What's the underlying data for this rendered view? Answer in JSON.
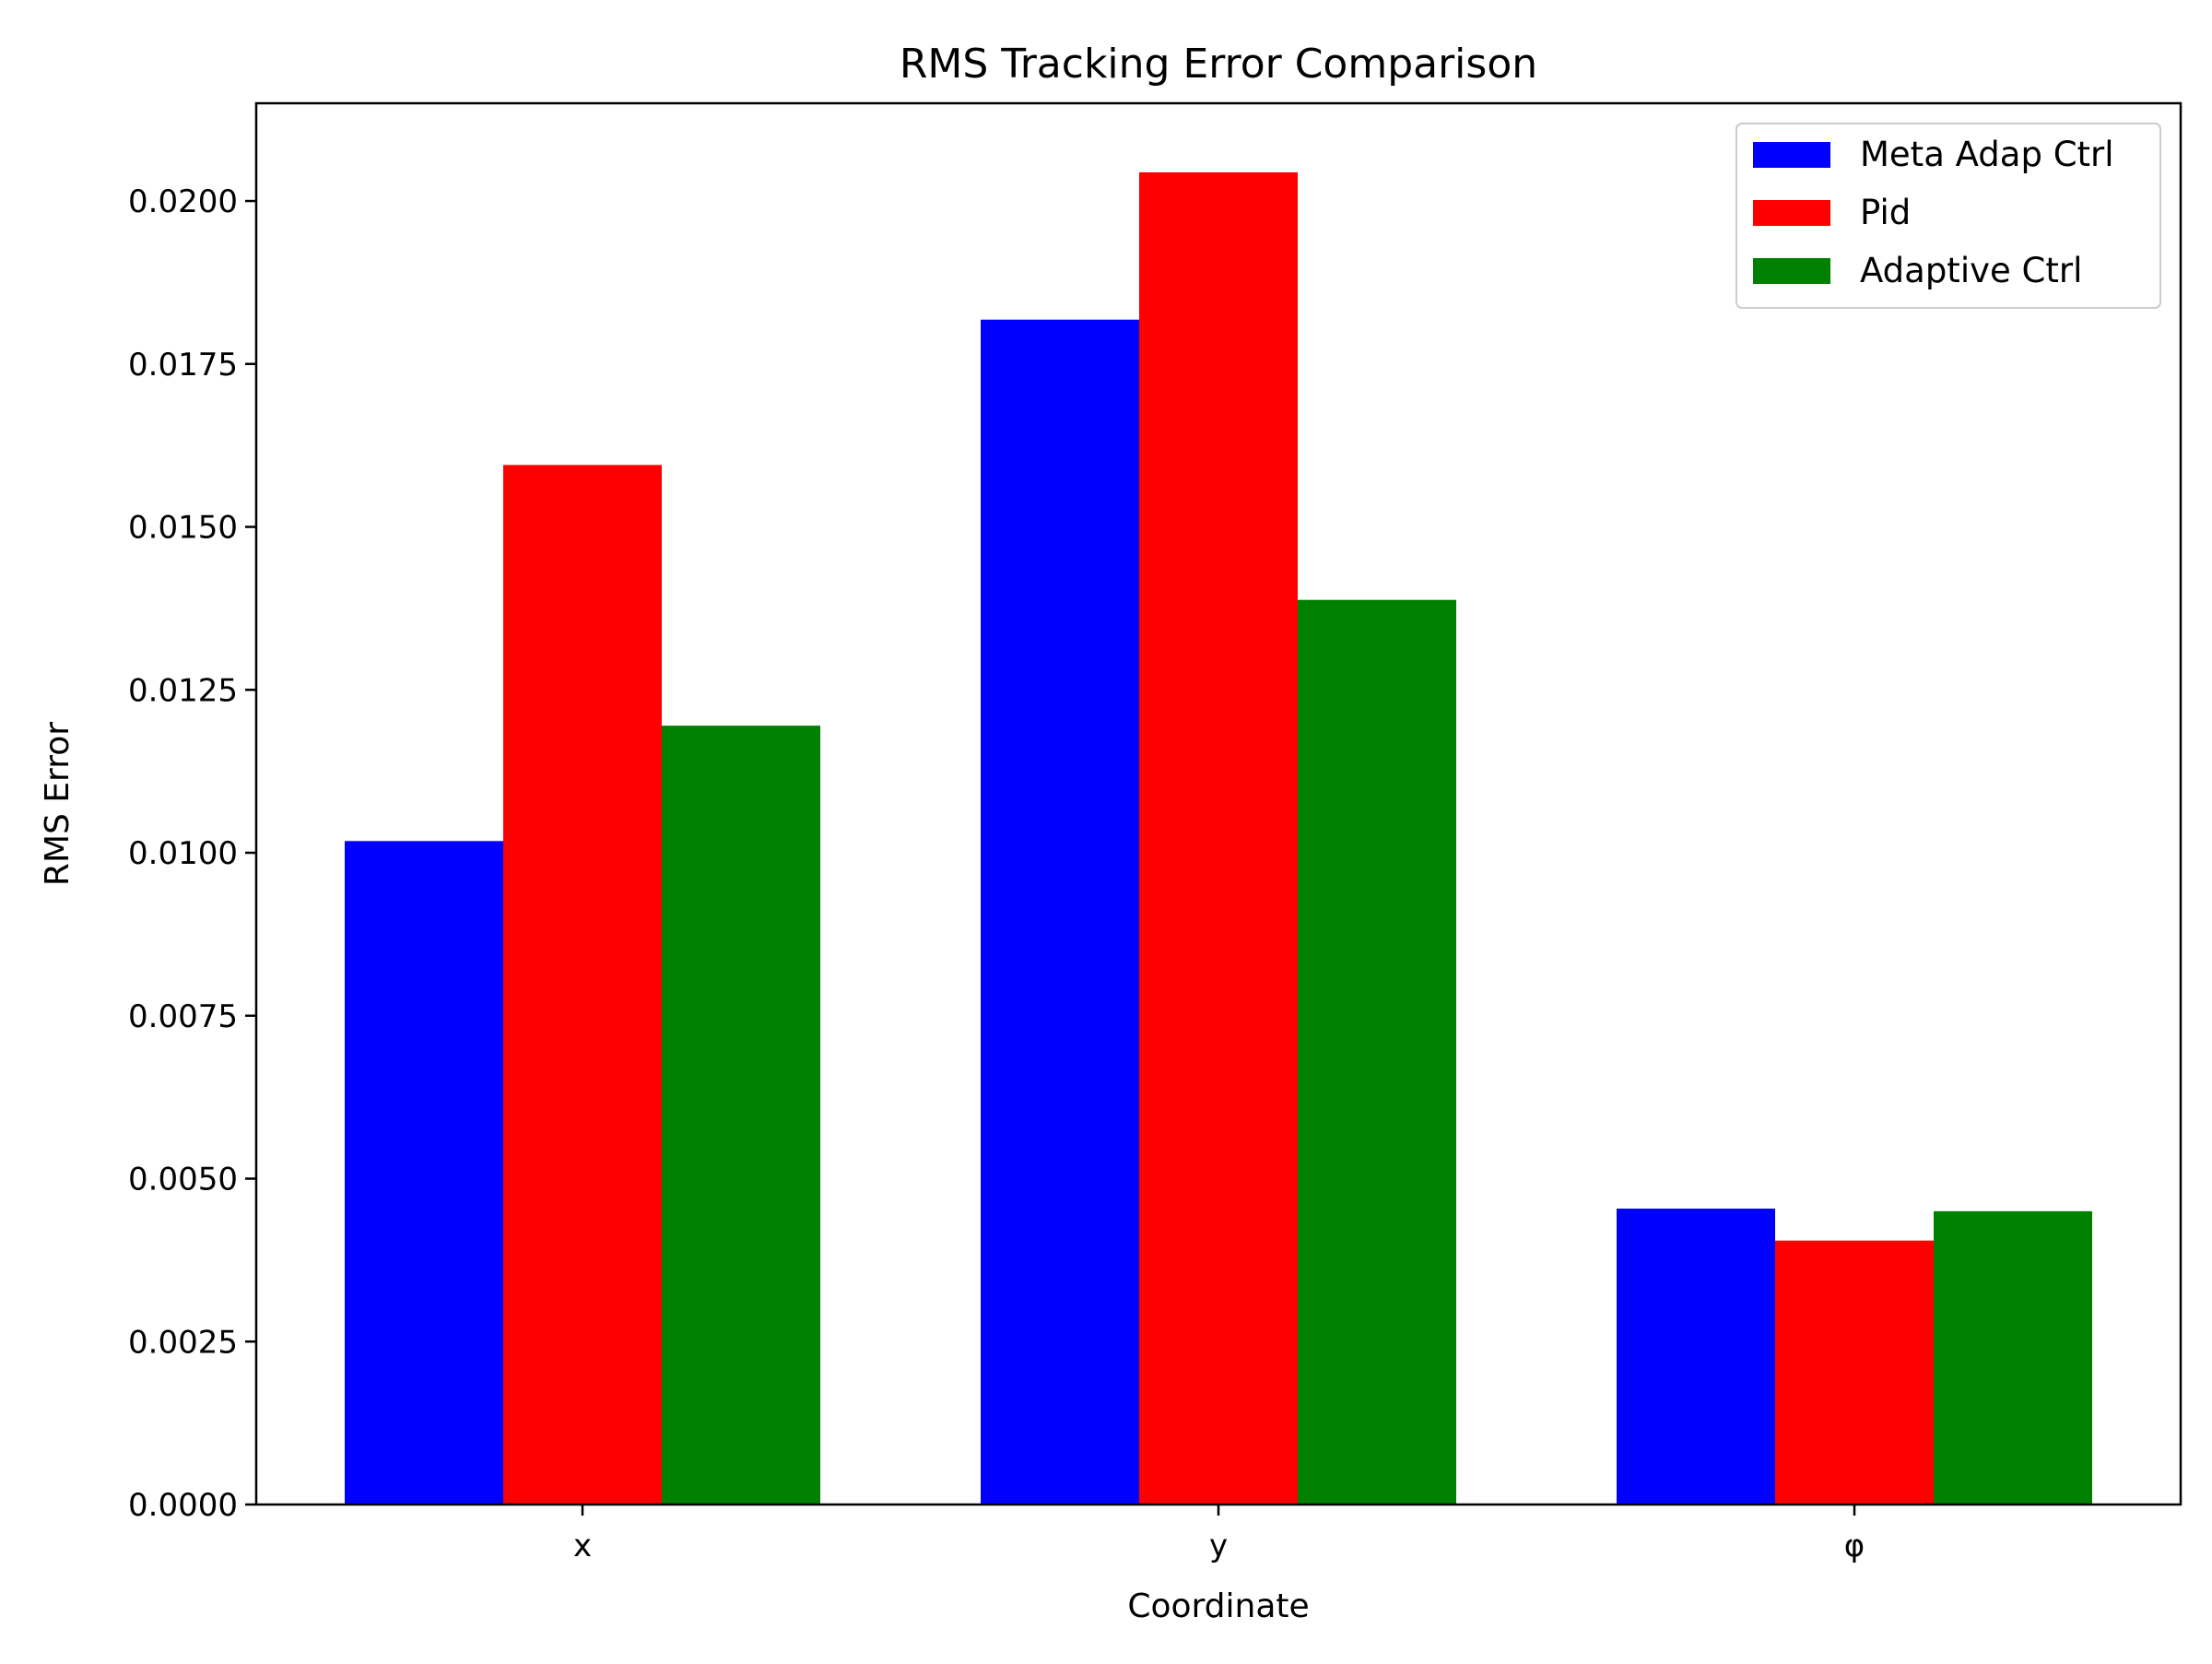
{
  "chart_data": {
    "type": "bar",
    "title": "RMS Tracking Error Comparison",
    "xlabel": "Coordinate",
    "ylabel": "RMS Error",
    "categories": [
      "x",
      "y",
      "φ"
    ],
    "series": [
      {
        "name": "Meta Adap Ctrl",
        "color": "#0000ff",
        "values": [
          0.01018,
          0.01818,
          0.00454
        ]
      },
      {
        "name": "Pid",
        "color": "#ff0000",
        "values": [
          0.01595,
          0.02044,
          0.00405
        ]
      },
      {
        "name": "Adaptive Ctrl",
        "color": "#008000",
        "values": [
          0.01195,
          0.01388,
          0.0045
        ]
      }
    ],
    "ylim": [
      0,
      0.0215
    ],
    "yticks": [
      0,
      0.0025,
      0.005,
      0.0075,
      0.01,
      0.0125,
      0.015,
      0.0175,
      0.02
    ],
    "ytick_labels": [
      "0.0000",
      "0.0025",
      "0.0050",
      "0.0075",
      "0.0100",
      "0.0125",
      "0.0150",
      "0.0175",
      "0.0200"
    ],
    "grid": false,
    "legend_position": "top-right"
  }
}
